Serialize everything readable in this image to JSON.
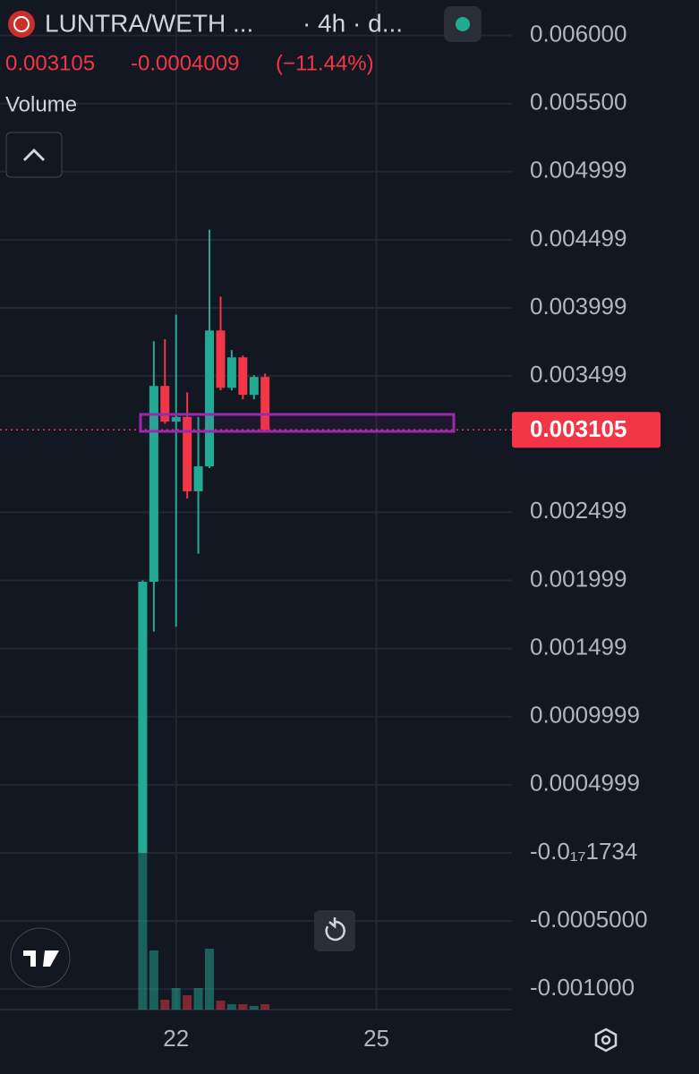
{
  "chart_data": {
    "type": "candlestick",
    "title": "LUNTRA/WETH ...",
    "interval": "· 4h · d...",
    "last_price": 0.003105,
    "change": -0.0004009,
    "change_percent": "(−11.44%)",
    "volume_label": "Volume",
    "x": [
      21.5,
      21.667,
      21.833,
      22,
      22.167,
      22.333,
      22.5,
      22.667,
      22.833,
      23,
      23.167,
      23.333
    ],
    "open": [
      0.0,
      0.00199,
      0.003427,
      0.003165,
      0.0032,
      0.002654,
      0.002837,
      0.003834,
      0.003414,
      0.003637,
      0.003362,
      0.003493
    ],
    "high": [
      0.002,
      0.003755,
      0.00377,
      0.00395,
      0.00338,
      0.0032,
      0.004574,
      0.004083,
      0.00369,
      0.00365,
      0.003506,
      0.003519
    ],
    "low": [
      0.0,
      0.001625,
      0.00315,
      0.00166,
      0.0026,
      0.002195,
      0.002824,
      0.003395,
      0.003395,
      0.003329,
      0.003329,
      0.003105
    ],
    "close": [
      0.00199,
      0.003427,
      0.003165,
      0.0032,
      0.002654,
      0.002837,
      0.003834,
      0.003414,
      0.003637,
      0.003362,
      0.003493,
      0.003105
    ],
    "volume": [
      175,
      66,
      11,
      24,
      16,
      24,
      68,
      10,
      6,
      6,
      4,
      6
    ],
    "up_color": "#22ab94",
    "down_color": "#f23645",
    "xlim": [
      19.363,
      27.03
    ],
    "xticks": [
      22,
      25
    ],
    "ylim": [
      -0.00115,
      0.00626
    ],
    "yticks": [
      {
        "value": 0.006,
        "label": "0.006000"
      },
      {
        "value": 0.0055,
        "label": "0.005500"
      },
      {
        "value": 0.005,
        "label": "0.004999"
      },
      {
        "value": 0.0045,
        "label": "0.004499"
      },
      {
        "value": 0.004,
        "label": "0.003999"
      },
      {
        "value": 0.0035,
        "label": "0.003499"
      },
      {
        "value": 0.0025,
        "label": "0.002499"
      },
      {
        "value": 0.002,
        "label": "0.001999"
      },
      {
        "value": 0.0015,
        "label": "0.001499"
      },
      {
        "value": 0.001,
        "label": "0.0009999"
      },
      {
        "value": 0.0005,
        "label": "0.0004999"
      },
      {
        "value": 0,
        "label": "-0.0₁₇1734"
      },
      {
        "value": -0.0005,
        "label": "-0.0005000"
      },
      {
        "value": -0.001,
        "label": "-0.001000"
      }
    ],
    "grid": true
  }
}
